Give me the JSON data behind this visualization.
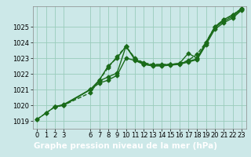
{
  "bg_color": "#cce8e8",
  "plot_bg_color": "#cce8e8",
  "line_color": "#1a6b1a",
  "grid_color": "#99ccbb",
  "xlabel": "Graphe pression niveau de la mer (hPa)",
  "xlim": [
    -0.5,
    23.5
  ],
  "ylim": [
    1018.5,
    1026.3
  ],
  "yticks": [
    1019,
    1020,
    1021,
    1022,
    1023,
    1024,
    1025
  ],
  "xticks": [
    0,
    1,
    2,
    3,
    6,
    7,
    8,
    9,
    10,
    11,
    12,
    13,
    14,
    15,
    16,
    17,
    18,
    19,
    20,
    21,
    22,
    23
  ],
  "series": [
    {
      "x": [
        0,
        1,
        2,
        3,
        6,
        7,
        8,
        9,
        10,
        11,
        12,
        13,
        14,
        15,
        16,
        17,
        18,
        19,
        20,
        21,
        22,
        23
      ],
      "y": [
        1019.1,
        1019.5,
        1019.9,
        1020.0,
        1020.8,
        1021.6,
        1022.4,
        1023.1,
        1023.75,
        1023.0,
        1022.7,
        1022.6,
        1022.6,
        1022.6,
        1022.65,
        1022.85,
        1023.25,
        1024.0,
        1025.0,
        1025.45,
        1025.75,
        1026.15
      ],
      "marker": "D",
      "markersize": 2.5,
      "linewidth": 1.0,
      "linestyle": "--"
    },
    {
      "x": [
        0,
        1,
        2,
        3,
        6,
        7,
        8,
        9,
        10,
        11,
        12,
        13,
        14,
        15,
        16,
        17,
        18,
        19,
        20,
        21,
        22,
        23
      ],
      "y": [
        1019.1,
        1019.5,
        1019.9,
        1020.0,
        1021.0,
        1021.6,
        1022.5,
        1023.0,
        1023.75,
        1022.95,
        1022.65,
        1022.55,
        1022.55,
        1022.6,
        1022.65,
        1023.3,
        1023.0,
        1024.0,
        1025.0,
        1025.45,
        1025.75,
        1026.15
      ],
      "marker": "D",
      "markersize": 2.5,
      "linewidth": 1.0,
      "linestyle": "-"
    },
    {
      "x": [
        2,
        3,
        6,
        7,
        8,
        9,
        10,
        11,
        12,
        13,
        14,
        15,
        16,
        17,
        18,
        19,
        20,
        21,
        22,
        23
      ],
      "y": [
        1019.9,
        1020.05,
        1021.0,
        1021.55,
        1021.8,
        1022.05,
        1023.75,
        1022.9,
        1022.6,
        1022.55,
        1022.55,
        1022.6,
        1022.65,
        1022.8,
        1022.95,
        1023.95,
        1024.95,
        1025.35,
        1025.65,
        1026.1
      ],
      "marker": "D",
      "markersize": 2.5,
      "linewidth": 1.0,
      "linestyle": "-"
    },
    {
      "x": [
        2,
        3,
        6,
        7,
        8,
        9,
        10,
        11,
        12,
        13,
        14,
        15,
        16,
        17,
        18,
        19,
        20,
        21,
        22,
        23
      ],
      "y": [
        1019.9,
        1020.0,
        1021.0,
        1021.4,
        1021.6,
        1021.9,
        1023.0,
        1022.85,
        1022.6,
        1022.5,
        1022.5,
        1022.55,
        1022.6,
        1022.75,
        1022.9,
        1023.85,
        1024.85,
        1025.25,
        1025.55,
        1026.05
      ],
      "marker": "D",
      "markersize": 2.5,
      "linewidth": 1.0,
      "linestyle": "-"
    }
  ],
  "xlabel_fontsize": 7.5,
  "xlabel_fontweight": "bold",
  "xlabel_bar_color": "#2a7a2a",
  "xlabel_text_color": "#ffffff",
  "tick_fontsize": 6.0,
  "tick_color": "#000000"
}
